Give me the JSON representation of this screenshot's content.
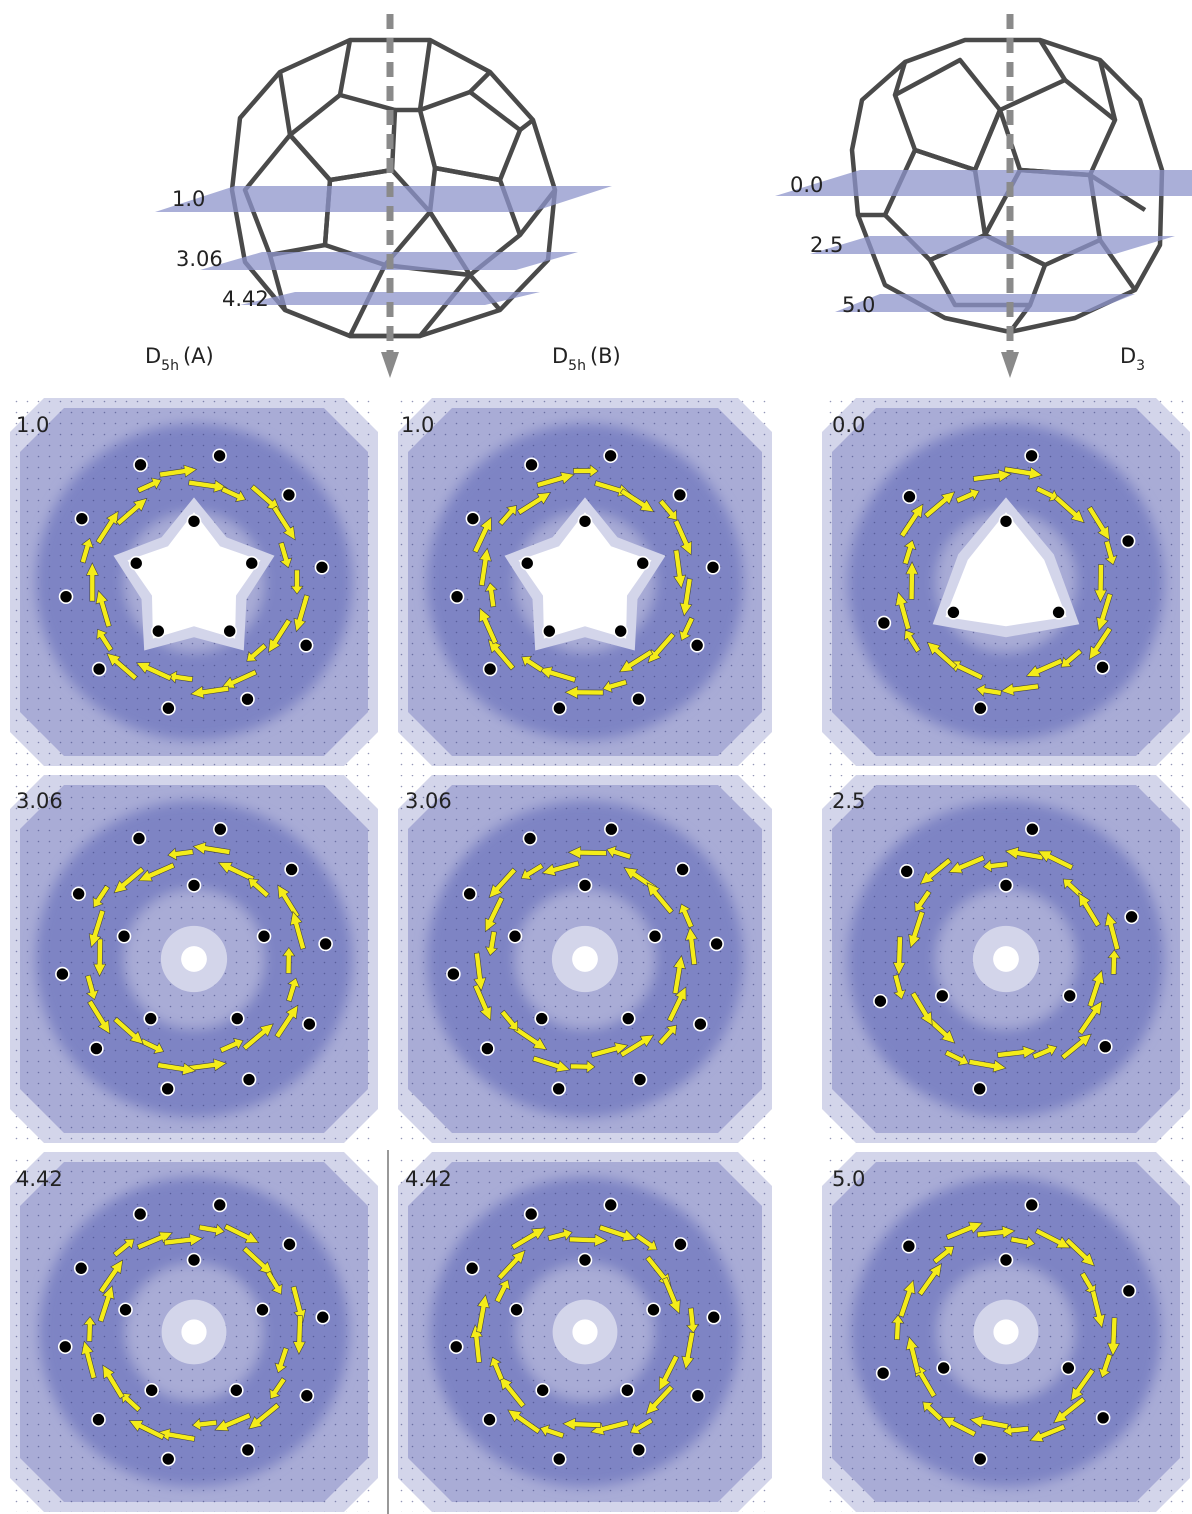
{
  "molecules": {
    "left": {
      "planes": [
        "1.0",
        "3.06",
        "4.42"
      ]
    },
    "right": {
      "planes": [
        "0.0",
        "2.5",
        "5.0"
      ]
    }
  },
  "columns": [
    {
      "main": "D",
      "sub": "5h",
      "suffix": "(A)"
    },
    {
      "main": "D",
      "sub": "5h",
      "suffix": "(B)"
    },
    {
      "main": "D",
      "sub": "3",
      "suffix": ""
    }
  ],
  "panels": [
    [
      "1.0",
      "1.0",
      "0.0"
    ],
    [
      "3.06",
      "3.06",
      "2.5"
    ],
    [
      "4.42",
      "4.42",
      "5.0"
    ]
  ],
  "colors": {
    "outer": "#d3d5ea",
    "mid": "#a9acd6",
    "inner": "#7e84c4",
    "hole": "#ffffff",
    "arrow": "#f4ec19",
    "atom": "#000000",
    "cage": "#4a4a4a",
    "plane": "#8e95cc",
    "axis": "#8a8a8a"
  }
}
